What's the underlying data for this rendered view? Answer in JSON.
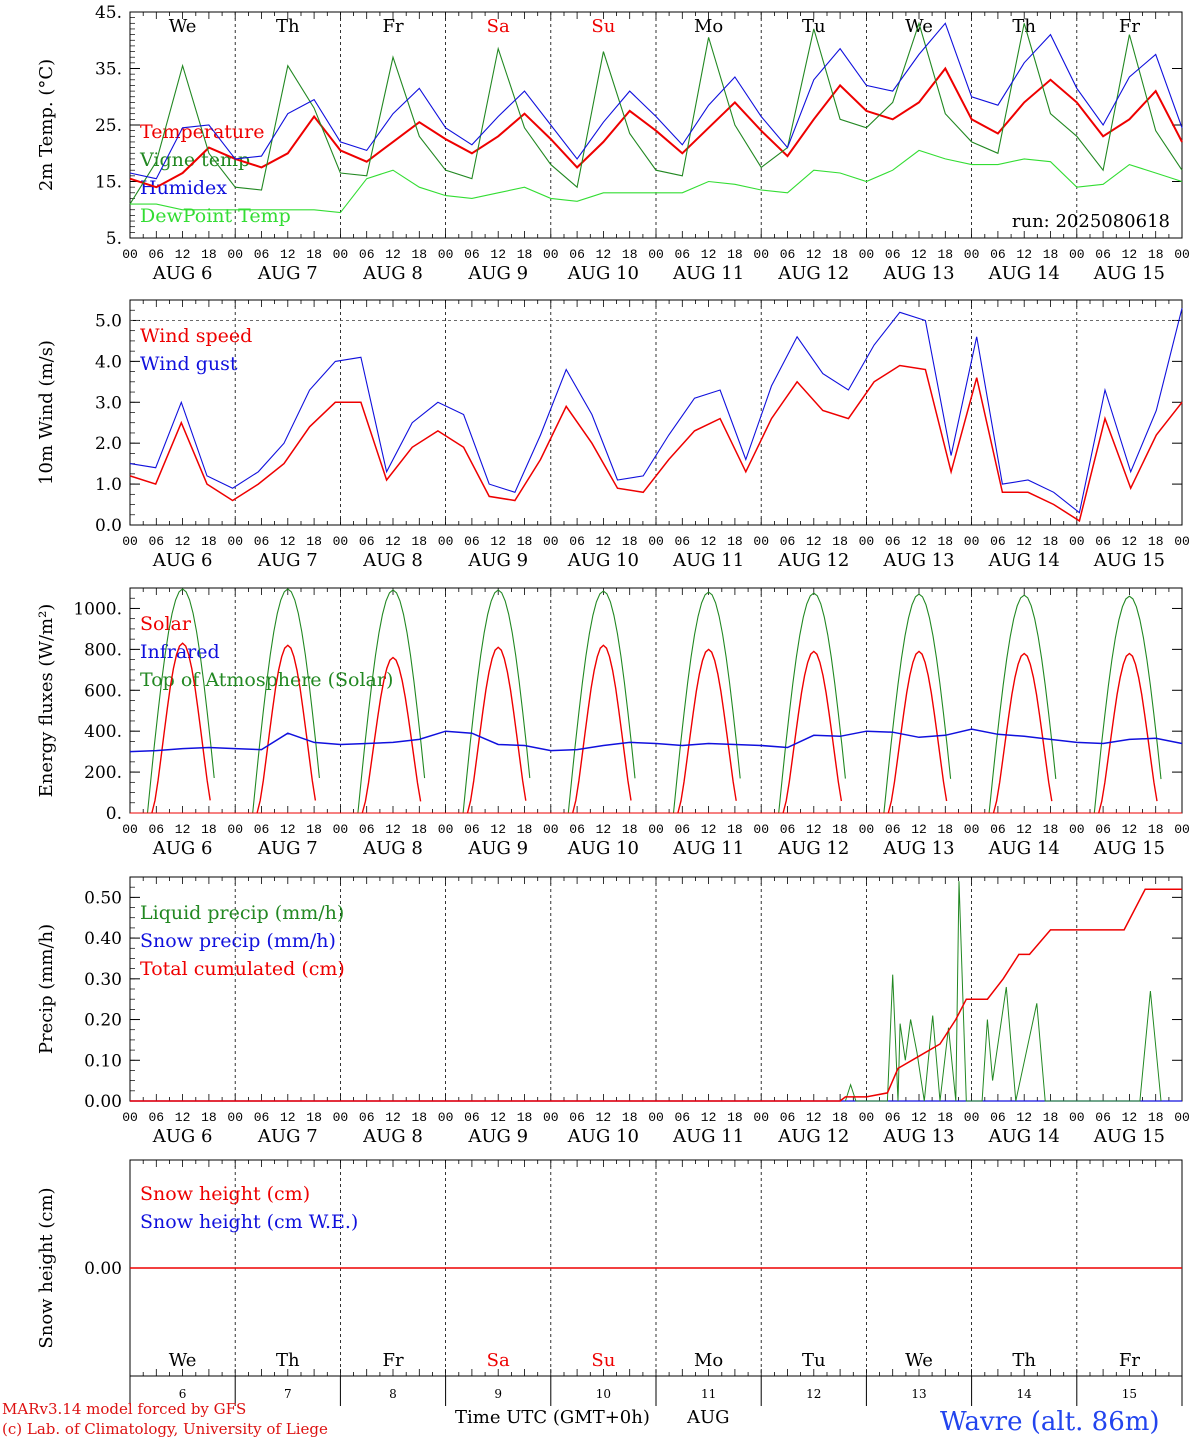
{
  "colors": {
    "red": "#ee0000",
    "green": "#228822",
    "blue": "#1010dd",
    "lightgreen": "#33dd33",
    "black": "#000000",
    "title_blue": "#2244ee",
    "footer_red": "#dd1111"
  },
  "days": [
    {
      "abbr": "We",
      "weekend": false,
      "date": "AUG  6",
      "num": "6"
    },
    {
      "abbr": "Th",
      "weekend": false,
      "date": "AUG  7",
      "num": "7"
    },
    {
      "abbr": "Fr",
      "weekend": false,
      "date": "AUG  8",
      "num": "8"
    },
    {
      "abbr": "Sa",
      "weekend": true,
      "date": "AUG  9",
      "num": "9"
    },
    {
      "abbr": "Su",
      "weekend": true,
      "date": "AUG 10",
      "num": "10"
    },
    {
      "abbr": "Mo",
      "weekend": false,
      "date": "AUG 11",
      "num": "11"
    },
    {
      "abbr": "Tu",
      "weekend": false,
      "date": "AUG 12",
      "num": "12"
    },
    {
      "abbr": "We",
      "weekend": false,
      "date": "AUG 13",
      "num": "13"
    },
    {
      "abbr": "Th",
      "weekend": false,
      "date": "AUG 14",
      "num": "14"
    },
    {
      "abbr": "Fr",
      "weekend": false,
      "date": "AUG 15",
      "num": "15"
    }
  ],
  "hour_ticks": [
    "00",
    "06",
    "12",
    "18"
  ],
  "footer": {
    "model": "MARv3.14 model forced by GFS",
    "credit": "(c) Lab. of Climatology, University of Liege",
    "xlabel": "Time UTC (GMT+0h)",
    "month": "AUG",
    "station": "Wavre (alt. 86m)"
  },
  "chart_data": [
    {
      "type": "line",
      "ylabel": "2m Temp. (°C)",
      "ylim": [
        5,
        45
      ],
      "yticks": [
        "5.",
        "15.",
        "25.",
        "35.",
        "45."
      ],
      "annotation": "run: 2025080618",
      "legend": [
        {
          "text": "Temperature",
          "color": "red"
        },
        {
          "text": "Vigne temp",
          "color": "green"
        },
        {
          "text": "Humidex",
          "color": "blue"
        },
        {
          "text": "DewPoint Temp",
          "color": "lightgreen"
        }
      ],
      "series": [
        {
          "name": "Temperature",
          "color": "red",
          "values": [
            15.5,
            14,
            16.5,
            21,
            19,
            17.5,
            20,
            26.5,
            20.5,
            18.5,
            22,
            25.5,
            22.5,
            20,
            23,
            27,
            22.5,
            17.5,
            22,
            27.5,
            24,
            20,
            24.5,
            29,
            24,
            19.5,
            26,
            32,
            27.5,
            26,
            29,
            35,
            26,
            23.5,
            29,
            33,
            29,
            23,
            26,
            31,
            22
          ]
        },
        {
          "name": "Vigne temp",
          "color": "green",
          "values": [
            11,
            18.5,
            35.5,
            20,
            14,
            13.5,
            35.5,
            28,
            16.5,
            16,
            37,
            23,
            17,
            15.5,
            38.5,
            24.5,
            18,
            14,
            38,
            23.5,
            17,
            16,
            40.5,
            25,
            17.5,
            21,
            42,
            26,
            24.5,
            29,
            43,
            27,
            22,
            20,
            43,
            27,
            23,
            17,
            41,
            24,
            17
          ]
        },
        {
          "name": "Humidex",
          "color": "blue",
          "values": [
            16.5,
            15.5,
            24.5,
            25,
            19,
            19.5,
            27,
            29.5,
            22,
            20.5,
            27,
            31.5,
            24.5,
            21.5,
            26.5,
            31,
            25,
            19,
            25.5,
            31,
            26.5,
            21.5,
            28.5,
            33.5,
            26.5,
            21,
            33,
            38.5,
            32,
            31,
            37.5,
            43,
            30,
            28.5,
            36,
            41,
            31.5,
            25,
            33.5,
            37.5,
            24.5
          ]
        },
        {
          "name": "DewPoint Temp",
          "color": "lightgreen",
          "values": [
            11,
            11,
            10,
            10,
            10,
            10,
            10,
            10,
            9.5,
            15.5,
            17,
            14,
            12.5,
            12,
            13,
            14,
            12,
            11.5,
            13,
            13,
            13,
            13,
            15,
            14.5,
            13.5,
            13,
            17,
            16.5,
            15,
            17,
            20.5,
            19,
            18,
            18,
            19,
            18.5,
            14,
            14.5,
            18,
            16.5,
            15
          ]
        }
      ]
    },
    {
      "type": "line",
      "ylabel": "10m Wind (m/s)",
      "ylim": [
        0,
        5.5
      ],
      "yticks": [
        "0.0",
        "1.0",
        "2.0",
        "3.0",
        "4.0",
        "5.0"
      ],
      "ref_line": 5,
      "legend": [
        {
          "text": "Wind speed",
          "color": "red"
        },
        {
          "text": "Wind gust",
          "color": "blue"
        }
      ],
      "series": [
        {
          "name": "Wind speed",
          "color": "red",
          "values": [
            1.2,
            1.0,
            2.5,
            1.0,
            0.6,
            1.0,
            1.5,
            2.4,
            3.0,
            3.0,
            1.1,
            1.9,
            2.3,
            1.9,
            0.7,
            0.6,
            1.6,
            2.9,
            2.0,
            0.9,
            0.8,
            1.6,
            2.3,
            2.6,
            1.3,
            2.6,
            3.5,
            2.8,
            2.6,
            3.5,
            3.9,
            3.8,
            1.3,
            3.6,
            0.8,
            0.8,
            0.5,
            0.1,
            2.6,
            0.9,
            2.2,
            3.0
          ]
        },
        {
          "name": "Wind gust",
          "color": "blue",
          "values": [
            1.5,
            1.4,
            3.0,
            1.2,
            0.9,
            1.3,
            2.0,
            3.3,
            4.0,
            4.1,
            1.3,
            2.5,
            3.0,
            2.7,
            1.0,
            0.8,
            2.2,
            3.8,
            2.7,
            1.1,
            1.2,
            2.2,
            3.1,
            3.3,
            1.6,
            3.4,
            4.6,
            3.7,
            3.3,
            4.4,
            5.2,
            5.0,
            1.7,
            4.6,
            1.0,
            1.1,
            0.8,
            0.3,
            3.3,
            1.3,
            2.8,
            5.3
          ]
        }
      ]
    },
    {
      "type": "line",
      "ylabel": "Energy fluxes (W/m²)",
      "ylim": [
        0,
        1100
      ],
      "yticks": [
        "0.",
        "200.",
        "400.",
        "600.",
        "800.",
        "1000."
      ],
      "legend": [
        {
          "text": "Solar",
          "color": "red"
        },
        {
          "text": "Infrared",
          "color": "blue"
        },
        {
          "text": "Top of Atmosphere (Solar)",
          "color": "green"
        }
      ],
      "solar_peaks": [
        830,
        820,
        760,
        810,
        820,
        800,
        790,
        790,
        780,
        780
      ],
      "toa_peaks": [
        1095,
        1095,
        1090,
        1090,
        1085,
        1080,
        1075,
        1070,
        1065,
        1060
      ],
      "infrared": [
        300,
        305,
        315,
        320,
        315,
        310,
        390,
        345,
        335,
        340,
        345,
        360,
        400,
        390,
        335,
        330,
        305,
        310,
        330,
        345,
        340,
        330,
        340,
        335,
        330,
        320,
        380,
        375,
        400,
        395,
        370,
        380,
        410,
        385,
        375,
        360,
        345,
        340,
        360,
        365,
        340
      ]
    },
    {
      "type": "line",
      "ylabel": "Precip (mm/h)",
      "ylim": [
        0,
        0.55
      ],
      "yticks": [
        "0.00",
        "0.10",
        "0.20",
        "0.30",
        "0.40",
        "0.50"
      ],
      "legend": [
        {
          "text": "Liquid precip (mm/h)",
          "color": "green"
        },
        {
          "text": "Snow precip (mm/h)",
          "color": "blue"
        },
        {
          "text": "Total cumulated (cm)",
          "color": "red"
        }
      ],
      "liquid": [
        [
          6.8,
          0
        ],
        [
          6.85,
          0.04
        ],
        [
          6.9,
          0
        ],
        [
          7.2,
          0
        ],
        [
          7.25,
          0.31
        ],
        [
          7.3,
          0
        ],
        [
          7.32,
          0.19
        ],
        [
          7.37,
          0.1
        ],
        [
          7.42,
          0.2
        ],
        [
          7.48,
          0.12
        ],
        [
          7.55,
          0
        ],
        [
          7.63,
          0.21
        ],
        [
          7.7,
          0
        ],
        [
          7.78,
          0.18
        ],
        [
          7.85,
          0
        ],
        [
          7.88,
          0.54
        ],
        [
          7.95,
          0
        ],
        [
          8.1,
          0
        ],
        [
          8.15,
          0.2
        ],
        [
          8.2,
          0.05
        ],
        [
          8.33,
          0.28
        ],
        [
          8.42,
          0
        ],
        [
          8.62,
          0.24
        ],
        [
          8.7,
          0
        ],
        [
          9.6,
          0
        ],
        [
          9.7,
          0.27
        ],
        [
          9.8,
          0
        ]
      ],
      "cumulated": [
        [
          0,
          0
        ],
        [
          6.75,
          0
        ],
        [
          6.8,
          0.01
        ],
        [
          7.0,
          0.01
        ],
        [
          7.2,
          0.02
        ],
        [
          7.3,
          0.08
        ],
        [
          7.5,
          0.11
        ],
        [
          7.7,
          0.14
        ],
        [
          7.85,
          0.2
        ],
        [
          7.95,
          0.25
        ],
        [
          8.15,
          0.25
        ],
        [
          8.3,
          0.3
        ],
        [
          8.45,
          0.36
        ],
        [
          8.55,
          0.36
        ],
        [
          8.75,
          0.42
        ],
        [
          9.45,
          0.42
        ],
        [
          9.65,
          0.52
        ],
        [
          10,
          0.52
        ]
      ]
    },
    {
      "type": "line",
      "ylabel": "Snow height (cm)",
      "yticks": [
        "0.00"
      ],
      "legend": [
        {
          "text": "Snow height (cm)",
          "color": "red"
        },
        {
          "text": "Snow height (cm W.E.)",
          "color": "blue"
        }
      ],
      "values": [
        0,
        0
      ]
    }
  ]
}
